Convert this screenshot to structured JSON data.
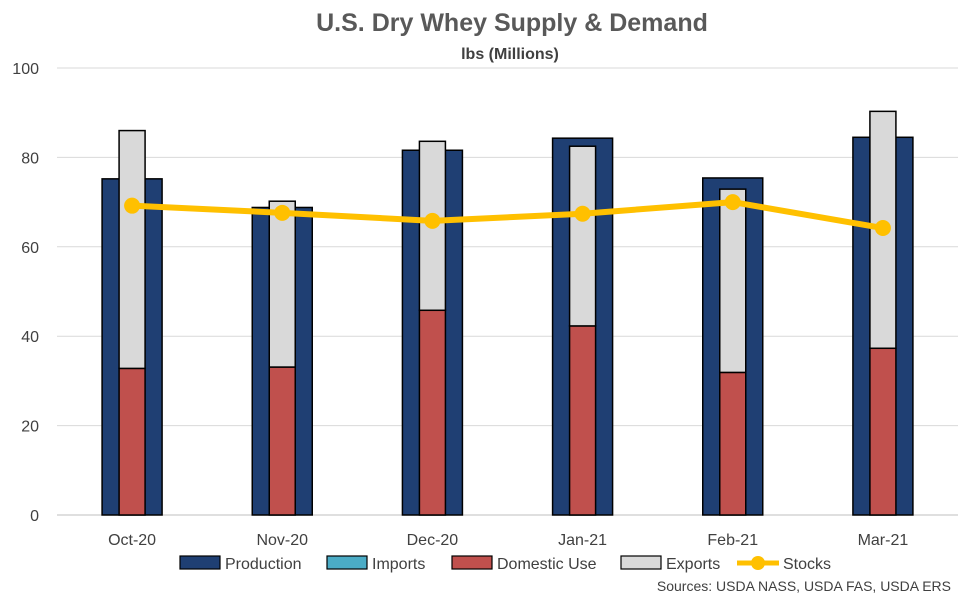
{
  "chart_data": {
    "type": "bar",
    "title": "U.S. Dry Whey Supply & Demand",
    "subtitle": "lbs (Millions)",
    "source": "Sources: USDA NASS, USDA FAS, USDA ERS",
    "categories": [
      "Oct-20",
      "Nov-20",
      "Dec-20",
      "Jan-21",
      "Feb-21",
      "Mar-21"
    ],
    "ylim": [
      0,
      100
    ],
    "yticks": [
      0,
      20,
      40,
      60,
      80,
      100
    ],
    "grid": true,
    "legend_position": "bottom",
    "series": [
      {
        "name": "Production",
        "type": "bar",
        "color": "#1f3f73",
        "values": [
          75.2,
          68.8,
          81.6,
          84.3,
          75.4,
          84.5
        ]
      },
      {
        "name": "Imports",
        "type": "bar",
        "color": "#4bacc6",
        "values": [
          0,
          0,
          0,
          0,
          0,
          0
        ]
      },
      {
        "name": "Domestic Use",
        "type": "stacked-bar",
        "color": "#c0504d",
        "values": [
          32.8,
          33.1,
          45.8,
          42.3,
          31.9,
          37.3
        ]
      },
      {
        "name": "Exports",
        "type": "stacked-bar",
        "color": "#d9d9d9",
        "values": [
          53.2,
          37.1,
          37.8,
          40.2,
          41.0,
          53.0
        ]
      },
      {
        "name": "Stocks",
        "type": "line",
        "color": "#ffc000",
        "values": [
          69.2,
          67.6,
          65.8,
          67.4,
          70.0,
          64.2
        ]
      }
    ]
  }
}
